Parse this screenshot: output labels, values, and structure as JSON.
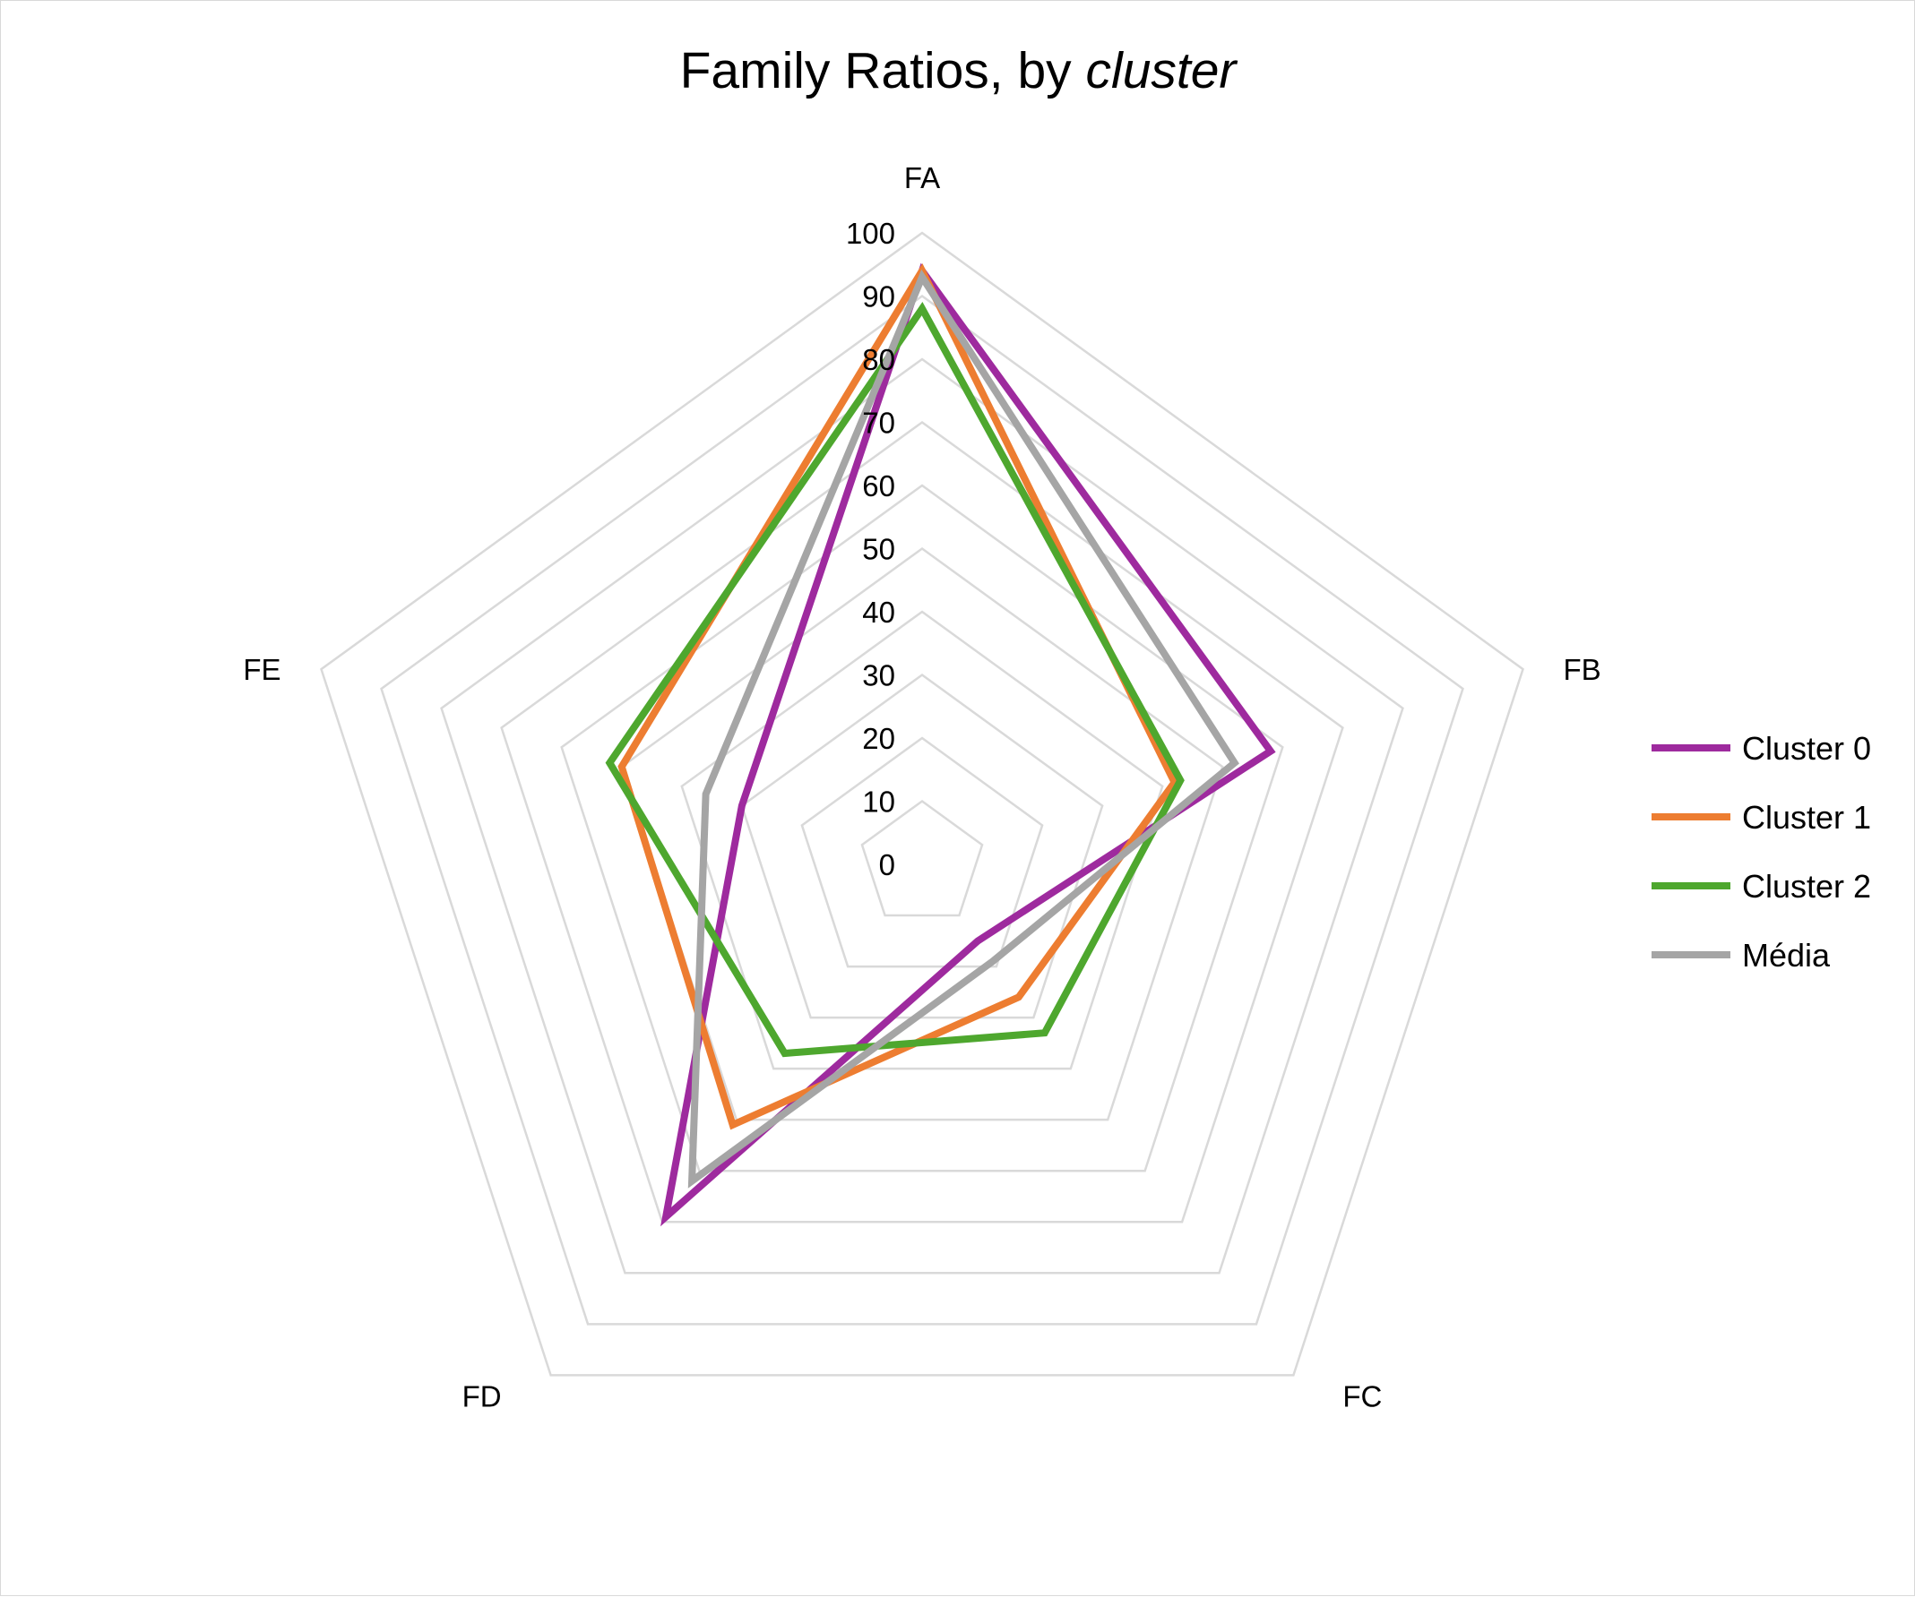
{
  "chart_data": {
    "type": "radar",
    "title": "Family Ratios, by ",
    "title_italic": "cluster",
    "axes": [
      "FA",
      "FB",
      "FC",
      "FD",
      "FE"
    ],
    "rlim": [
      0,
      100
    ],
    "ticks": [
      0,
      10,
      20,
      30,
      40,
      50,
      60,
      70,
      80,
      90,
      100
    ],
    "tick_labels": [
      "0",
      "10",
      "20",
      "30",
      "40",
      "50",
      "60",
      "70",
      "80",
      "90",
      "100"
    ],
    "grid": true,
    "legend_position": "right",
    "series": [
      {
        "name": "Cluster 0",
        "color": "#9e2a9e",
        "values": [
          94,
          58,
          15,
          69,
          30
        ]
      },
      {
        "name": "Cluster 1",
        "color": "#ed7d31",
        "values": [
          94,
          42,
          26,
          51,
          50
        ]
      },
      {
        "name": "Cluster 2",
        "color": "#4ea72e",
        "values": [
          88,
          43,
          33,
          37,
          52
        ]
      },
      {
        "name": "Média",
        "color": "#a5a5a5",
        "values": [
          93,
          52,
          19,
          62,
          36
        ]
      }
    ]
  }
}
